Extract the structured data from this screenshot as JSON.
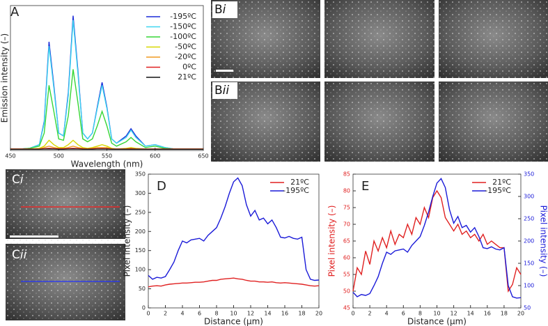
{
  "chart_data": [
    {
      "type": "line",
      "label": "A",
      "xlabel": "Wavelength (nm)",
      "ylabel": "Emission intensity (–)",
      "x": [
        450,
        460,
        470,
        480,
        485,
        490,
        495,
        500,
        505,
        510,
        515,
        520,
        525,
        530,
        535,
        540,
        545,
        550,
        555,
        560,
        570,
        575,
        580,
        590,
        600,
        610,
        620,
        630,
        640,
        650
      ],
      "xlim": [
        450,
        650
      ],
      "xticks": [
        450,
        500,
        550,
        600,
        650
      ],
      "ylim": [
        0,
        100
      ],
      "legend": "upper right",
      "series": [
        {
          "name": "-195ºC",
          "color": "#1a2ad8",
          "values": [
            1,
            1,
            1.5,
            4,
            20,
            75,
            45,
            12,
            10,
            40,
            93,
            55,
            12,
            8,
            12,
            30,
            47,
            30,
            8,
            5,
            10,
            15,
            10,
            3,
            4,
            2,
            1,
            1,
            1,
            1
          ]
        },
        {
          "name": "-150ºC",
          "color": "#3fd6f0",
          "values": [
            1,
            1,
            1.5,
            4,
            19,
            72,
            43,
            12,
            10,
            38,
            90,
            53,
            12,
            8,
            12,
            29,
            45,
            29,
            8,
            5,
            9,
            14,
            9,
            3,
            4,
            2,
            1,
            1,
            1,
            1
          ]
        },
        {
          "name": "-100ºC",
          "color": "#36d636",
          "values": [
            1,
            1,
            1.5,
            3,
            12,
            45,
            27,
            8,
            7,
            24,
            56,
            33,
            8,
            6,
            8,
            17,
            27,
            17,
            5,
            3,
            6,
            9,
            6,
            2,
            3,
            1.5,
            1,
            1,
            1,
            1
          ]
        },
        {
          "name": "-50ºC",
          "color": "#d8d800",
          "values": [
            1,
            1,
            1,
            1.5,
            3,
            7,
            4,
            2,
            2,
            4,
            7,
            4,
            2,
            1.5,
            2,
            3,
            4,
            3,
            1.5,
            1,
            1.5,
            2,
            1.5,
            1,
            1,
            1,
            1,
            1,
            1,
            1
          ]
        },
        {
          "name": "-20ºC",
          "color": "#f09a20",
          "values": [
            1,
            1,
            1,
            1,
            2,
            3,
            2,
            1.5,
            1.5,
            2,
            3,
            2,
            1.5,
            1,
            1.5,
            2,
            2,
            2,
            1,
            1,
            1,
            1.5,
            1,
            1,
            1,
            1,
            1,
            1,
            1,
            1
          ]
        },
        {
          "name": "0ºC",
          "color": "#e02020",
          "values": [
            1,
            1,
            1,
            1,
            1.2,
            1.5,
            1.3,
            1.1,
            1.1,
            1.3,
            1.5,
            1.3,
            1.1,
            1,
            1.1,
            1.2,
            1.3,
            1.2,
            1,
            1,
            1,
            1.1,
            1,
            1,
            1,
            1,
            1,
            1,
            1,
            1
          ]
        },
        {
          "name": "21ºC",
          "color": "#111111",
          "values": [
            0.8,
            0.8,
            0.8,
            0.8,
            0.9,
            1,
            0.9,
            0.8,
            0.8,
            0.9,
            1,
            0.9,
            0.8,
            0.8,
            0.8,
            0.9,
            0.9,
            0.9,
            0.8,
            0.8,
            0.8,
            0.8,
            0.8,
            0.8,
            0.8,
            0.8,
            0.8,
            0.8,
            0.8,
            0.8
          ]
        }
      ]
    },
    {
      "type": "line",
      "label": "D",
      "xlabel": "Distance  (µm)",
      "ylabel": "Pixel intensity (–)",
      "x": [
        0,
        0.5,
        1,
        1.5,
        2,
        2.5,
        3,
        3.5,
        4,
        4.5,
        5,
        5.5,
        6,
        6.5,
        7,
        7.5,
        8,
        8.5,
        9,
        9.5,
        10,
        10.5,
        11,
        11.5,
        12,
        12.5,
        13,
        13.5,
        14,
        14.5,
        15,
        15.5,
        16,
        16.5,
        17,
        17.5,
        18,
        18.5,
        19,
        19.5,
        20
      ],
      "xlim": [
        0,
        20
      ],
      "xticks": [
        0,
        2,
        4,
        6,
        8,
        10,
        12,
        14,
        16,
        18,
        20
      ],
      "ylim": [
        0,
        350
      ],
      "yticks": [
        0,
        50,
        100,
        150,
        200,
        250,
        300,
        350
      ],
      "legend": "upper right",
      "series": [
        {
          "name": "21ºC",
          "color": "#e02020",
          "values": [
            55,
            57,
            58,
            57,
            60,
            62,
            63,
            64,
            65,
            65,
            66,
            67,
            67,
            68,
            70,
            72,
            72,
            75,
            76,
            77,
            78,
            76,
            75,
            72,
            70,
            70,
            68,
            68,
            67,
            68,
            66,
            65,
            66,
            65,
            64,
            63,
            62,
            60,
            58,
            57,
            58
          ]
        },
        {
          "name": "-195ºC",
          "color": "#1a1ad8",
          "values": [
            85,
            75,
            80,
            78,
            82,
            100,
            120,
            150,
            175,
            170,
            178,
            180,
            182,
            175,
            190,
            200,
            210,
            235,
            265,
            300,
            330,
            340,
            320,
            270,
            240,
            255,
            230,
            235,
            220,
            230,
            210,
            185,
            183,
            187,
            182,
            180,
            185,
            100,
            75,
            72,
            73
          ]
        }
      ]
    },
    {
      "type": "line",
      "label": "E",
      "xlabel": "Distance  (µm)",
      "ylabel": "Pixel intensity (–)",
      "y2label": "Pixel intensity (–)",
      "x": [
        0,
        0.5,
        1,
        1.5,
        2,
        2.5,
        3,
        3.5,
        4,
        4.5,
        5,
        5.5,
        6,
        6.5,
        7,
        7.5,
        8,
        8.5,
        9,
        9.5,
        10,
        10.5,
        11,
        11.5,
        12,
        12.5,
        13,
        13.5,
        14,
        14.5,
        15,
        15.5,
        16,
        16.5,
        17,
        17.5,
        18,
        18.5,
        19,
        19.5,
        20
      ],
      "xlim": [
        0,
        20
      ],
      "xticks": [
        0,
        2,
        4,
        6,
        8,
        10,
        12,
        14,
        16,
        18,
        20
      ],
      "ylim": [
        45,
        85
      ],
      "yticks": [
        45,
        50,
        55,
        60,
        65,
        70,
        75,
        80,
        85
      ],
      "y2lim": [
        50,
        350
      ],
      "y2ticks": [
        50,
        100,
        150,
        200,
        250,
        300,
        350
      ],
      "ycolor": "#e02020",
      "y2color": "#1a1ad8",
      "legend": "upper right",
      "series": [
        {
          "name": "21ºC",
          "color": "#e02020",
          "values": [
            50,
            57,
            55,
            62,
            58,
            65,
            62,
            66,
            63,
            68,
            64,
            67,
            66,
            70,
            67,
            72,
            70,
            75,
            72,
            78,
            80,
            78,
            72,
            70,
            68,
            70,
            67,
            68,
            66,
            67,
            65,
            67,
            64,
            65,
            64,
            63,
            63,
            50,
            52,
            57,
            55
          ]
        },
        {
          "name": "-195ºC",
          "color": "#1a1ad8",
          "axis": "y2",
          "values": [
            85,
            75,
            80,
            78,
            82,
            100,
            120,
            150,
            175,
            170,
            178,
            180,
            182,
            175,
            190,
            200,
            210,
            235,
            265,
            300,
            330,
            340,
            320,
            270,
            240,
            255,
            230,
            235,
            220,
            230,
            210,
            185,
            183,
            187,
            182,
            180,
            185,
            100,
            75,
            72,
            73
          ]
        }
      ]
    }
  ],
  "image_panels": [
    {
      "letter": "B",
      "sub": "i"
    },
    {
      "letter": "B",
      "sub": "ii"
    },
    {
      "letter": "C",
      "sub": "i"
    },
    {
      "letter": "C",
      "sub": "ii"
    }
  ]
}
